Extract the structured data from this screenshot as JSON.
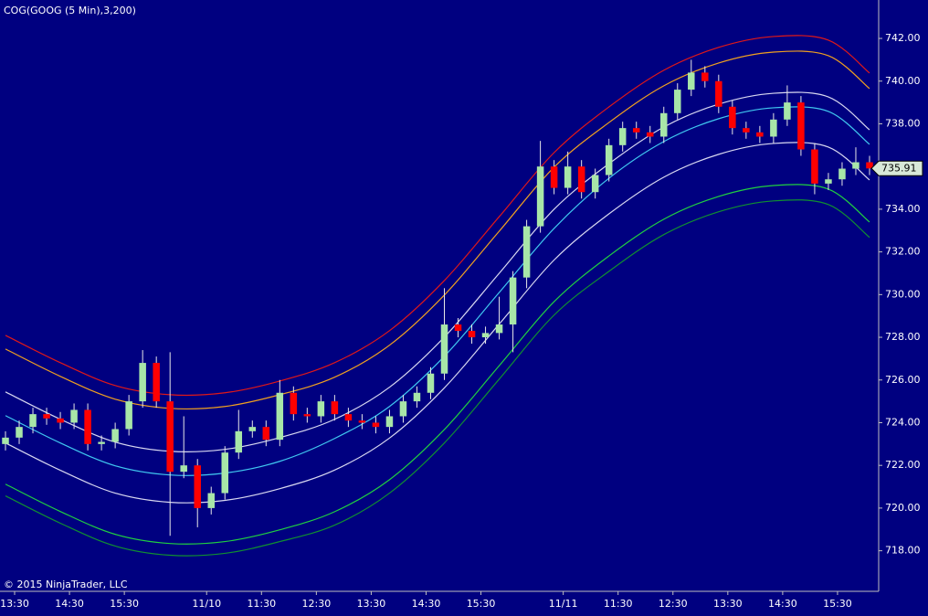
{
  "chart_data": {
    "type": "candlestick",
    "title": "COG(GOOG (5 Min),3,200)",
    "copyright": "© 2015 NinjaTrader, LLC",
    "up_color": "#a8e6a8",
    "down_color": "#ff0000",
    "wick_color": "#e8e8e8",
    "grid": false,
    "last_value": 735.91,
    "xlim": [
      0,
      191
    ],
    "ylim": [
      716.1,
      743.8
    ],
    "xticks": [
      {
        "value": 2,
        "label": "13:30"
      },
      {
        "value": 14,
        "label": "14:30"
      },
      {
        "value": 26,
        "label": "15:30"
      },
      {
        "value": 44,
        "label": "11/10"
      },
      {
        "value": 56,
        "label": "11:30"
      },
      {
        "value": 68,
        "label": "12:30"
      },
      {
        "value": 80,
        "label": "13:30"
      },
      {
        "value": 92,
        "label": "14:30"
      },
      {
        "value": 104,
        "label": "15:30"
      },
      {
        "value": 122,
        "label": "11/11"
      },
      {
        "value": 134,
        "label": "11:30"
      },
      {
        "value": 146,
        "label": "12:30"
      },
      {
        "value": 158,
        "label": "13:30"
      },
      {
        "value": 170,
        "label": "14:30"
      },
      {
        "value": 182,
        "label": "15:30"
      }
    ],
    "yticks": [
      {
        "value": 718,
        "label": "718.00"
      },
      {
        "value": 720,
        "label": "720.00"
      },
      {
        "value": 722,
        "label": "722.00"
      },
      {
        "value": 724,
        "label": "724.00"
      },
      {
        "value": 726,
        "label": "726.00"
      },
      {
        "value": 728,
        "label": "728.00"
      },
      {
        "value": 730,
        "label": "730.00"
      },
      {
        "value": 732,
        "label": "732.00"
      },
      {
        "value": 734,
        "label": "734.00"
      },
      {
        "value": 736,
        "label": "736.00"
      },
      {
        "value": 738,
        "label": "738.00"
      },
      {
        "value": 740,
        "label": "740.00"
      },
      {
        "value": 742,
        "label": "742.00"
      }
    ],
    "x": [
      0,
      3,
      6,
      9,
      12,
      15,
      18,
      21,
      24,
      27,
      30,
      33,
      36,
      39,
      42,
      45,
      48,
      51,
      54,
      57,
      60,
      63,
      66,
      69,
      72,
      75,
      78,
      81,
      84,
      87,
      90,
      93,
      96,
      99,
      102,
      105,
      108,
      111,
      114,
      117,
      120,
      123,
      126,
      129,
      132,
      135,
      138,
      141,
      144,
      147,
      150,
      153,
      156,
      159,
      162,
      165,
      168,
      171,
      174,
      177,
      180,
      183,
      186,
      189
    ],
    "open": [
      723.0,
      723.3,
      723.8,
      724.4,
      724.2,
      724.0,
      724.6,
      723.0,
      723.1,
      723.7,
      725.0,
      726.8,
      725.0,
      721.7,
      722.0,
      720.0,
      720.7,
      722.6,
      723.6,
      723.8,
      723.2,
      725.4,
      724.4,
      724.3,
      725.0,
      724.4,
      724.1,
      724.0,
      723.8,
      724.3,
      725.0,
      725.4,
      726.3,
      728.6,
      728.3,
      728.0,
      728.2,
      728.6,
      730.8,
      733.2,
      736.0,
      735.0,
      736.0,
      734.8,
      735.6,
      737.0,
      737.8,
      737.6,
      737.4,
      738.5,
      739.6,
      740.4,
      740.0,
      738.8,
      737.8,
      737.6,
      737.4,
      738.2,
      739.0,
      736.8,
      735.2,
      735.4,
      735.9,
      736.2
    ],
    "high": [
      723.6,
      724.1,
      724.7,
      724.7,
      724.5,
      724.9,
      724.9,
      723.4,
      724.0,
      725.3,
      727.4,
      727.1,
      727.3,
      724.3,
      722.3,
      721.0,
      722.9,
      724.6,
      724.1,
      724.1,
      726.0,
      725.7,
      724.7,
      725.3,
      725.3,
      724.7,
      724.4,
      724.3,
      724.6,
      725.3,
      725.7,
      726.6,
      730.3,
      728.9,
      728.6,
      728.5,
      729.9,
      731.1,
      733.5,
      737.2,
      736.3,
      736.7,
      736.3,
      735.9,
      737.3,
      738.1,
      738.1,
      737.9,
      738.8,
      739.9,
      741.0,
      740.7,
      740.3,
      739.1,
      738.1,
      737.9,
      738.5,
      739.8,
      739.3,
      737.1,
      735.7,
      736.2,
      736.9,
      736.5
    ],
    "low": [
      722.7,
      723.0,
      723.5,
      723.9,
      723.7,
      723.7,
      722.7,
      722.7,
      722.8,
      723.4,
      724.7,
      724.7,
      718.7,
      721.4,
      719.1,
      719.7,
      720.4,
      722.3,
      723.3,
      722.9,
      722.9,
      724.1,
      724.0,
      724.0,
      724.1,
      723.8,
      723.7,
      723.5,
      723.5,
      724.0,
      724.7,
      725.1,
      726.0,
      728.0,
      727.7,
      727.7,
      727.9,
      727.3,
      730.3,
      732.9,
      734.7,
      734.7,
      734.5,
      734.5,
      735.3,
      736.7,
      737.3,
      737.1,
      737.1,
      738.2,
      739.3,
      739.7,
      738.5,
      737.5,
      737.3,
      737.1,
      737.1,
      737.9,
      736.5,
      734.7,
      734.9,
      735.1,
      735.6,
      735.6
    ],
    "close": [
      723.3,
      723.8,
      724.4,
      724.2,
      724.0,
      724.6,
      723.0,
      723.1,
      723.7,
      725.0,
      726.8,
      725.0,
      721.7,
      722.0,
      720.0,
      720.7,
      722.6,
      723.6,
      723.8,
      723.2,
      725.4,
      724.4,
      724.3,
      725.0,
      724.4,
      724.1,
      724.0,
      723.8,
      724.3,
      725.0,
      725.4,
      726.3,
      728.6,
      728.3,
      728.0,
      728.2,
      728.6,
      730.8,
      733.2,
      736.0,
      735.0,
      736.0,
      734.8,
      735.6,
      737.0,
      737.8,
      737.6,
      737.4,
      738.5,
      739.6,
      740.4,
      740.0,
      738.8,
      737.8,
      737.6,
      737.4,
      738.2,
      739.0,
      736.8,
      735.2,
      735.4,
      735.9,
      736.2,
      735.91
    ],
    "band_x": [
      0,
      12,
      24,
      36,
      48,
      60,
      72,
      84,
      96,
      108,
      120,
      132,
      144,
      156,
      168,
      180,
      189
    ],
    "bands": [
      {
        "color": "#e01818",
        "values": [
          728.09,
          726.81,
          725.74,
          725.31,
          725.4,
          725.95,
          726.81,
          728.31,
          730.66,
          733.65,
          736.65,
          738.79,
          740.51,
          741.58,
          742.09,
          741.92,
          740.38
        ]
      },
      {
        "color": "#f0a020",
        "values": [
          727.45,
          726.17,
          725.1,
          724.67,
          724.76,
          725.31,
          726.13,
          727.63,
          729.98,
          732.97,
          735.97,
          738.06,
          739.78,
          740.85,
          741.36,
          741.19,
          739.65
        ]
      },
      {
        "color": "#d8d8f0",
        "values": [
          725.44,
          724.16,
          723.09,
          722.66,
          722.75,
          723.3,
          724.16,
          725.66,
          728.01,
          731.0,
          734.0,
          736.13,
          737.85,
          738.92,
          739.43,
          739.26,
          737.72
        ]
      },
      {
        "color": "#40c8f0",
        "values": [
          724.33,
          723.05,
          721.98,
          721.55,
          721.64,
          722.19,
          723.26,
          724.76,
          727.11,
          730.1,
          733.1,
          735.45,
          737.17,
          738.24,
          738.75,
          738.58,
          737.04
        ]
      },
      {
        "color": "#d8d8f0",
        "values": [
          723.05,
          721.77,
          720.7,
          720.27,
          720.36,
          720.91,
          721.78,
          723.28,
          725.63,
          728.62,
          731.62,
          733.78,
          735.5,
          736.57,
          737.08,
          736.91,
          735.37
        ]
      },
      {
        "color": "#20d040",
        "values": [
          721.12,
          719.84,
          718.77,
          718.34,
          718.43,
          718.98,
          719.83,
          721.33,
          723.68,
          726.67,
          729.67,
          731.81,
          733.53,
          734.6,
          735.11,
          734.94,
          733.4
        ]
      },
      {
        "color": "#109030",
        "values": [
          720.57,
          719.29,
          718.22,
          717.79,
          717.88,
          718.43,
          719.2,
          720.7,
          723.05,
          726.04,
          729.04,
          731.09,
          732.81,
          733.88,
          734.39,
          734.22,
          732.68
        ]
      }
    ]
  }
}
